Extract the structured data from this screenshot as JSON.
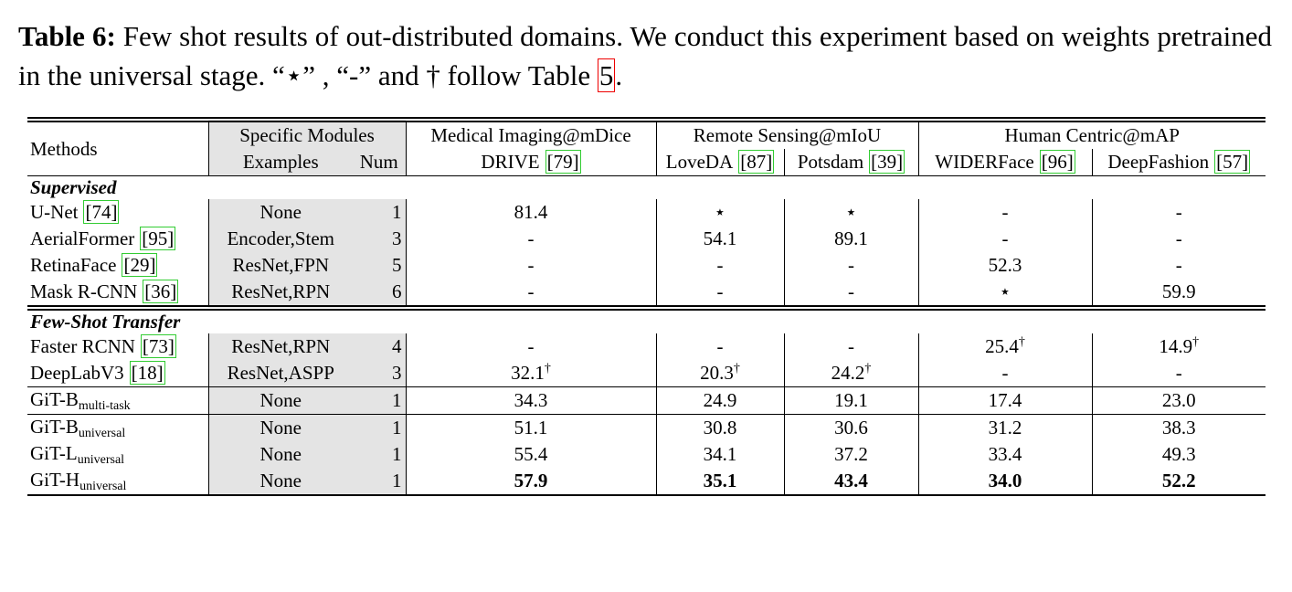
{
  "caption": {
    "label": "Table 6:",
    "text": "Few shot results of out-distributed domains. We conduct this experiment based on weights pretrained in the universal stage. “⋆” , “-” and † follow Table ",
    "ref": "5",
    "end": "."
  },
  "table": {
    "header": {
      "groups": [
        "Methods",
        "Specific Modules",
        "Medical Imaging@mDice",
        "Remote Sensing@mIoU",
        "Human Centric@mAP"
      ],
      "columns": [
        {
          "text": "Examples"
        },
        {
          "text": "Num"
        },
        {
          "text": "DRIVE",
          "cite": "[79]"
        },
        {
          "text": "LoveDA",
          "cite": "[87]"
        },
        {
          "text": "Potsdam",
          "cite": "[39]"
        },
        {
          "text": "WIDERFace",
          "cite": "[96]"
        },
        {
          "text": "DeepFashion",
          "cite": "[57]"
        }
      ]
    },
    "sections": [
      {
        "title": "Supervised",
        "rows": [
          {
            "method": {
              "text": "U-Net",
              "cite": "[74]"
            },
            "examples": "None",
            "num": "1",
            "values": [
              "81.4",
              "⋆",
              "⋆",
              "-",
              "-"
            ]
          },
          {
            "method": {
              "text": "AerialFormer",
              "cite": "[95]"
            },
            "examples": "Encoder,Stem",
            "num": "3",
            "values": [
              "-",
              "54.1",
              "89.1",
              "-",
              "-"
            ]
          },
          {
            "method": {
              "text": "RetinaFace",
              "cite": "[29]"
            },
            "examples": "ResNet,FPN",
            "num": "5",
            "values": [
              "-",
              "-",
              "-",
              "52.3",
              "-"
            ]
          },
          {
            "method": {
              "text": "Mask R-CNN",
              "cite": "[36]"
            },
            "examples": "ResNet,RPN",
            "num": "6",
            "values": [
              "-",
              "-",
              "-",
              "⋆",
              "59.9"
            ]
          }
        ]
      },
      {
        "title": "Few-Shot Transfer",
        "rows": [
          {
            "method": {
              "text": "Faster RCNN",
              "cite": "[73]"
            },
            "examples": "ResNet,RPN",
            "num": "4",
            "values": [
              "-",
              "-",
              "-",
              {
                "text": "25.4",
                "sup": "†"
              },
              {
                "text": "14.9",
                "sup": "†"
              }
            ]
          },
          {
            "method": {
              "text": "DeepLabV3",
              "cite": "[18]"
            },
            "examples": "ResNet,ASPP",
            "num": "3",
            "values": [
              {
                "text": "32.1",
                "sup": "†"
              },
              {
                "text": "20.3",
                "sup": "†"
              },
              {
                "text": "24.2",
                "sup": "†"
              },
              "-",
              "-"
            ]
          }
        ]
      },
      {
        "rows": [
          {
            "method": {
              "text": "GiT-B",
              "sub": "multi-task"
            },
            "examples": "None",
            "num": "1",
            "values": [
              "34.3",
              "24.9",
              "19.1",
              "17.4",
              "23.0"
            ]
          }
        ]
      },
      {
        "rows": [
          {
            "method": {
              "text": "GiT-B",
              "sub": "universal"
            },
            "examples": "None",
            "num": "1",
            "values": [
              "51.1",
              "30.8",
              "30.6",
              "31.2",
              "38.3"
            ]
          },
          {
            "method": {
              "text": "GiT-L",
              "sub": "universal"
            },
            "examples": "None",
            "num": "1",
            "values": [
              "55.4",
              "34.1",
              "37.2",
              "33.4",
              "49.3"
            ]
          },
          {
            "method": {
              "text": "GiT-H",
              "sub": "universal"
            },
            "examples": "None",
            "num": "1",
            "values": [
              "57.9",
              "35.1",
              "43.4",
              "34.0",
              "52.2"
            ],
            "bold": true
          }
        ]
      }
    ]
  }
}
